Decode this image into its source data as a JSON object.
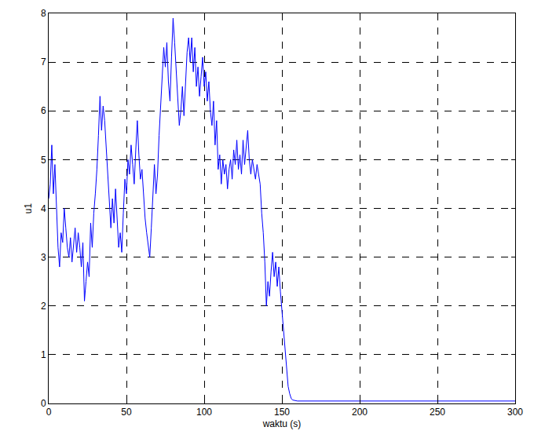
{
  "chart_data": {
    "type": "line",
    "x_label": "waktu (s)",
    "y_label": "u1",
    "x": [
      0,
      1,
      2,
      3,
      4,
      5,
      6,
      7,
      8,
      9,
      10,
      11,
      12,
      13,
      14,
      15,
      16,
      17,
      18,
      19,
      20,
      21,
      22,
      23,
      24,
      25,
      26,
      27,
      28,
      29,
      30,
      31,
      32,
      33,
      34,
      35,
      36,
      37,
      38,
      39,
      40,
      41,
      42,
      43,
      44,
      45,
      46,
      47,
      48,
      49,
      50,
      51,
      52,
      53,
      54,
      55,
      56,
      57,
      58,
      59,
      60,
      61,
      62,
      63,
      64,
      65,
      66,
      67,
      68,
      69,
      70,
      71,
      72,
      73,
      74,
      75,
      76,
      77,
      78,
      79,
      80,
      81,
      82,
      83,
      84,
      85,
      86,
      87,
      88,
      89,
      90,
      91,
      92,
      93,
      94,
      95,
      96,
      97,
      98,
      99,
      100,
      101,
      102,
      103,
      104,
      105,
      106,
      107,
      108,
      109,
      110,
      111,
      112,
      113,
      114,
      115,
      116,
      117,
      118,
      119,
      120,
      121,
      122,
      123,
      124,
      125,
      126,
      127,
      128,
      129,
      130,
      131,
      132,
      133,
      134,
      135,
      136,
      137,
      138,
      139,
      140,
      141,
      142,
      143,
      144,
      145,
      146,
      147,
      148,
      149,
      150,
      151,
      152,
      153,
      154,
      155,
      156,
      157,
      158,
      159,
      160,
      300
    ],
    "series": [
      {
        "name": "u1",
        "color": "#0000ff",
        "values": [
          4.2,
          4.5,
          5.3,
          4.3,
          4.9,
          4.0,
          3.2,
          2.8,
          3.5,
          3.3,
          4.0,
          3.6,
          3.2,
          3.0,
          3.4,
          2.9,
          3.3,
          3.6,
          3.1,
          3.5,
          3.2,
          2.8,
          3.3,
          2.1,
          2.5,
          2.9,
          2.6,
          3.7,
          3.2,
          3.9,
          4.3,
          4.8,
          5.5,
          6.3,
          5.6,
          6.1,
          5.8,
          5.2,
          4.6,
          4.0,
          3.6,
          4.2,
          3.7,
          4.4,
          3.8,
          3.2,
          3.5,
          3.1,
          3.9,
          4.6,
          4.3,
          5.0,
          4.7,
          5.3,
          4.9,
          4.5,
          5.2,
          5.8,
          5.1,
          4.6,
          4.8,
          4.2,
          3.8,
          3.5,
          3.2,
          3.0,
          3.6,
          4.2,
          4.9,
          4.3,
          4.7,
          5.5,
          6.1,
          6.8,
          7.3,
          6.9,
          7.4,
          6.6,
          6.2,
          7.1,
          7.9,
          7.4,
          6.8,
          6.3,
          5.7,
          6.0,
          6.5,
          5.9,
          6.6,
          7.2,
          7.5,
          7.0,
          7.5,
          6.8,
          7.3,
          6.5,
          6.9,
          6.3,
          6.7,
          7.1,
          6.5,
          6.8,
          6.2,
          6.6,
          6.0,
          5.7,
          6.2,
          5.3,
          5.8,
          4.8,
          5.1,
          4.5,
          5.0,
          4.7,
          4.9,
          4.4,
          4.8,
          5.0,
          4.6,
          5.2,
          4.9,
          5.4,
          4.8,
          5.1,
          4.7,
          5.4,
          4.9,
          5.3,
          5.6,
          5.0,
          4.7,
          5.0,
          4.8,
          4.6,
          4.9,
          4.7,
          4.5,
          3.9,
          3.5,
          2.9,
          2.0,
          2.5,
          2.2,
          2.7,
          3.1,
          2.6,
          2.9,
          2.4,
          2.8,
          2.3,
          1.9,
          1.4,
          1.0,
          0.6,
          0.35,
          0.2,
          0.1,
          0.07,
          0.06,
          0.05,
          0.05,
          0.05
        ]
      }
    ],
    "xlim": [
      0,
      300
    ],
    "xticks": [
      0,
      50,
      100,
      150,
      200,
      250,
      300
    ],
    "ylim": [
      0,
      8
    ],
    "yticks": [
      0,
      1,
      2,
      3,
      4,
      5,
      6,
      7,
      8
    ],
    "grid": true,
    "line_style": "solid"
  }
}
